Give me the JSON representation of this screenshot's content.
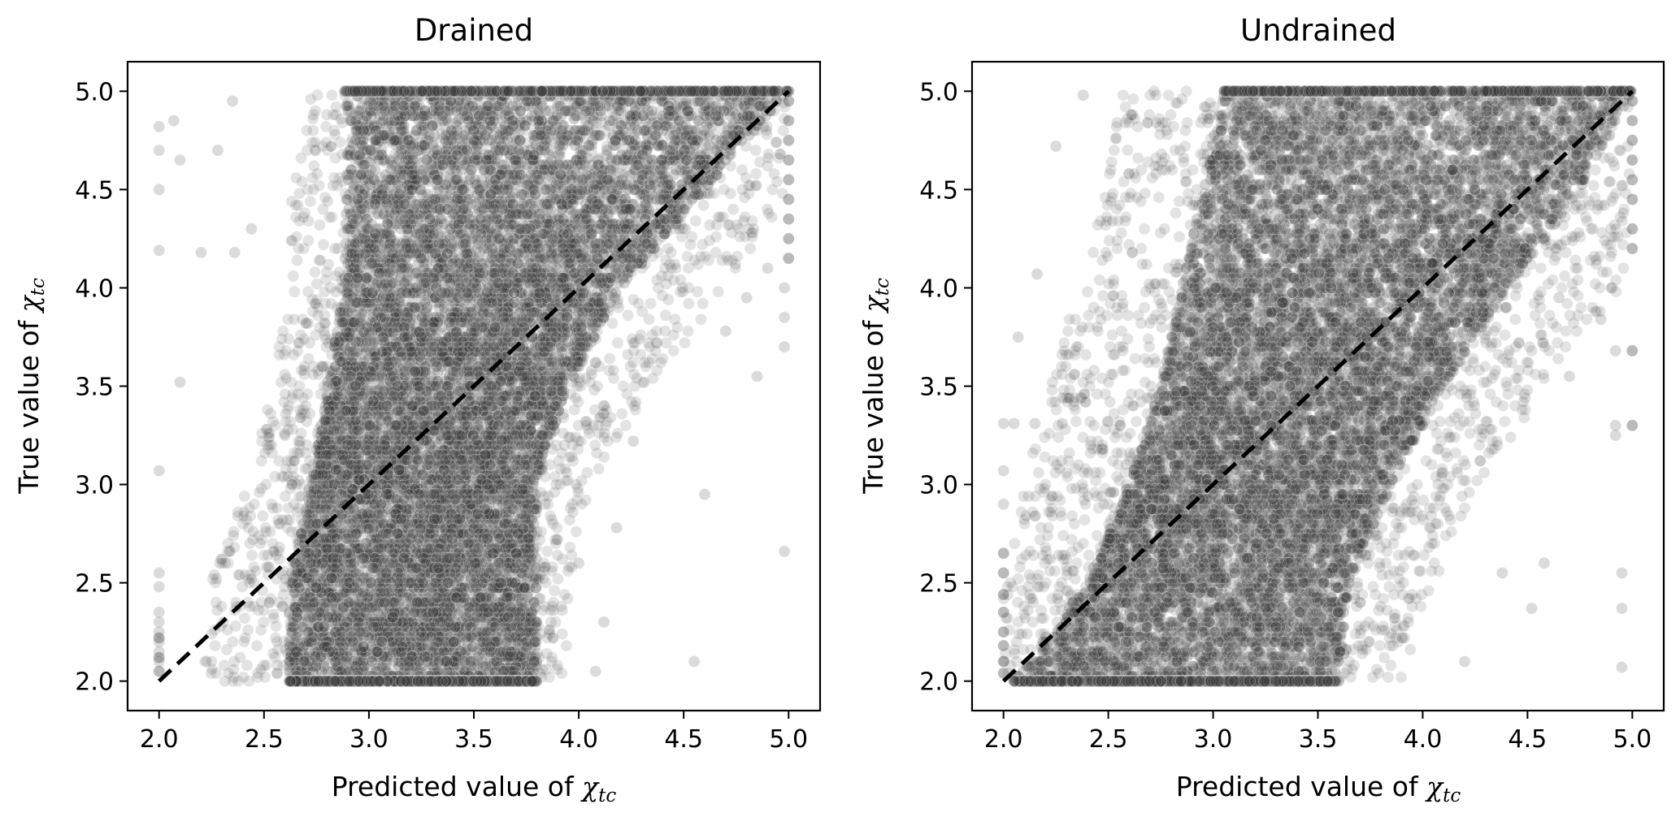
{
  "chart_data": [
    {
      "type": "scatter",
      "title": "Drained",
      "xlabel": "Predicted value of",
      "ylabel": "True value of",
      "symbol": "χ",
      "symbol_subscript": "tc",
      "xlim": [
        1.85,
        5.15
      ],
      "ylim": [
        1.85,
        5.15
      ],
      "xticks": [
        "2.0",
        "2.5",
        "3.0",
        "3.5",
        "4.0",
        "4.5",
        "5.0"
      ],
      "yticks": [
        "2.0",
        "2.5",
        "3.0",
        "3.5",
        "4.0",
        "4.5",
        "5.0"
      ],
      "reference_line": {
        "style": "dashed",
        "color": "#000000",
        "from": [
          2.0,
          2.0
        ],
        "to": [
          5.0,
          5.0
        ]
      },
      "grid": false,
      "marker_color": "#3a3a3a",
      "dense_region": {
        "y_range": [
          2.0,
          5.0
        ],
        "left_x_at_y": [
          [
            2.0,
            2.62
          ],
          [
            2.5,
            2.62
          ],
          [
            3.0,
            2.72
          ],
          [
            4.0,
            2.88
          ],
          [
            4.8,
            2.9
          ],
          [
            5.0,
            2.88
          ]
        ],
        "right_x_at_y": [
          [
            2.0,
            3.8
          ],
          [
            2.5,
            3.8
          ],
          [
            3.0,
            3.8
          ],
          [
            3.5,
            3.95
          ],
          [
            4.0,
            4.2
          ],
          [
            4.5,
            4.6
          ],
          [
            5.0,
            5.0
          ]
        ]
      },
      "fringe_region": {
        "left_x_at_y": [
          [
            2.0,
            2.2
          ],
          [
            2.5,
            2.25
          ],
          [
            3.0,
            2.42
          ],
          [
            3.5,
            2.55
          ],
          [
            4.0,
            2.6
          ],
          [
            4.5,
            2.63
          ],
          [
            5.0,
            2.72
          ]
        ],
        "right_x_at_y": [
          [
            2.0,
            3.95
          ],
          [
            2.5,
            3.95
          ],
          [
            3.0,
            4.05
          ],
          [
            3.5,
            4.35
          ],
          [
            4.0,
            4.7
          ],
          [
            4.5,
            5.0
          ],
          [
            5.0,
            5.0
          ]
        ]
      },
      "outliers": [
        [
          2.0,
          4.82
        ],
        [
          2.0,
          4.7
        ],
        [
          2.0,
          4.5
        ],
        [
          2.0,
          4.19
        ],
        [
          2.0,
          3.07
        ],
        [
          2.0,
          2.55
        ],
        [
          2.0,
          2.48
        ],
        [
          2.0,
          2.35
        ],
        [
          2.0,
          2.3
        ],
        [
          2.0,
          2.25
        ],
        [
          2.0,
          2.2
        ],
        [
          2.0,
          2.15
        ],
        [
          2.0,
          2.1
        ],
        [
          2.07,
          4.85
        ],
        [
          2.1,
          4.65
        ],
        [
          2.1,
          3.52
        ],
        [
          2.2,
          4.18
        ],
        [
          2.28,
          4.7
        ],
        [
          2.35,
          4.95
        ],
        [
          2.36,
          4.18
        ],
        [
          2.44,
          4.3
        ],
        [
          2.6,
          3.25
        ],
        [
          2.9,
          3.2
        ],
        [
          4.18,
          2.78
        ],
        [
          4.26,
          3.22
        ],
        [
          4.6,
          2.95
        ],
        [
          4.55,
          2.1
        ],
        [
          4.08,
          2.05
        ],
        [
          4.12,
          2.3
        ],
        [
          4.0,
          2.6
        ],
        [
          4.98,
          3.85
        ],
        [
          4.98,
          3.7
        ],
        [
          4.98,
          2.66
        ],
        [
          4.98,
          4.0
        ],
        [
          4.8,
          3.95
        ],
        [
          4.9,
          4.1
        ],
        [
          4.85,
          3.55
        ],
        [
          4.7,
          3.78
        ]
      ],
      "edge_points": [
        [
          5.0,
          4.15
        ],
        [
          5.0,
          4.25
        ],
        [
          5.0,
          4.35
        ],
        [
          5.0,
          4.45
        ],
        [
          5.0,
          4.55
        ],
        [
          5.0,
          4.65
        ],
        [
          5.0,
          4.75
        ],
        [
          5.0,
          4.85
        ],
        [
          5.0,
          4.95
        ],
        [
          5.0,
          5.0
        ],
        [
          2.0,
          2.05
        ],
        [
          2.0,
          2.12
        ],
        [
          2.0,
          2.22
        ]
      ]
    },
    {
      "type": "scatter",
      "title": "Undrained",
      "xlabel": "Predicted value of",
      "ylabel": "True value of",
      "symbol": "χ",
      "symbol_subscript": "tc",
      "xlim": [
        1.85,
        5.15
      ],
      "ylim": [
        1.85,
        5.15
      ],
      "xticks": [
        "2.0",
        "2.5",
        "3.0",
        "3.5",
        "4.0",
        "4.5",
        "5.0"
      ],
      "yticks": [
        "2.0",
        "2.5",
        "3.0",
        "3.5",
        "4.0",
        "4.5",
        "5.0"
      ],
      "reference_line": {
        "style": "dashed",
        "color": "#000000",
        "from": [
          2.0,
          2.0
        ],
        "to": [
          5.0,
          5.0
        ]
      },
      "grid": false,
      "marker_color": "#3a3a3a",
      "dense_region": {
        "y_range": [
          2.0,
          5.0
        ],
        "left_x_at_y": [
          [
            2.0,
            2.05
          ],
          [
            2.5,
            2.4
          ],
          [
            3.0,
            2.6
          ],
          [
            3.5,
            2.75
          ],
          [
            4.0,
            2.85
          ],
          [
            4.5,
            2.95
          ],
          [
            5.0,
            3.05
          ]
        ],
        "right_x_at_y": [
          [
            2.0,
            3.6
          ],
          [
            2.5,
            3.65
          ],
          [
            3.0,
            3.85
          ],
          [
            3.5,
            4.1
          ],
          [
            4.0,
            4.4
          ],
          [
            4.5,
            4.75
          ],
          [
            5.0,
            5.0
          ]
        ]
      },
      "fringe_region": {
        "left_x_at_y": [
          [
            2.0,
            2.0
          ],
          [
            2.5,
            2.0
          ],
          [
            3.0,
            2.1
          ],
          [
            3.5,
            2.22
          ],
          [
            4.0,
            2.35
          ],
          [
            4.5,
            2.48
          ],
          [
            5.0,
            2.55
          ]
        ],
        "right_x_at_y": [
          [
            2.0,
            3.9
          ],
          [
            2.5,
            4.05
          ],
          [
            3.0,
            4.25
          ],
          [
            3.5,
            4.6
          ],
          [
            4.0,
            4.95
          ],
          [
            4.5,
            5.0
          ],
          [
            5.0,
            5.0
          ]
        ]
      },
      "outliers": [
        [
          2.0,
          3.31
        ],
        [
          2.05,
          3.31
        ],
        [
          2.15,
          3.31
        ],
        [
          2.28,
          3.31
        ],
        [
          2.0,
          3.07
        ],
        [
          2.0,
          2.9
        ],
        [
          2.16,
          4.07
        ],
        [
          2.07,
          3.75
        ],
        [
          2.38,
          4.98
        ],
        [
          2.25,
          4.72
        ],
        [
          4.2,
          2.1
        ],
        [
          4.52,
          2.37
        ],
        [
          4.58,
          2.6
        ],
        [
          4.38,
          2.55
        ],
        [
          4.95,
          2.55
        ],
        [
          4.95,
          2.37
        ],
        [
          4.95,
          2.07
        ],
        [
          4.92,
          3.25
        ],
        [
          4.92,
          3.3
        ],
        [
          4.92,
          3.68
        ],
        [
          4.85,
          3.84
        ],
        [
          4.9,
          4.0
        ],
        [
          4.7,
          3.55
        ],
        [
          4.65,
          3.95
        ]
      ],
      "edge_points": [
        [
          5.0,
          4.2
        ],
        [
          5.0,
          4.3
        ],
        [
          5.0,
          4.45
        ],
        [
          5.0,
          4.55
        ],
        [
          5.0,
          4.65
        ],
        [
          5.0,
          4.75
        ],
        [
          5.0,
          4.85
        ],
        [
          5.0,
          4.95
        ],
        [
          5.0,
          3.68
        ],
        [
          5.0,
          3.3
        ],
        [
          2.0,
          2.65
        ],
        [
          2.0,
          2.55
        ],
        [
          2.0,
          2.44
        ],
        [
          2.0,
          2.35
        ],
        [
          2.0,
          2.25
        ],
        [
          2.0,
          2.18
        ],
        [
          2.0,
          2.1
        ],
        [
          2.0,
          2.04
        ]
      ]
    }
  ]
}
